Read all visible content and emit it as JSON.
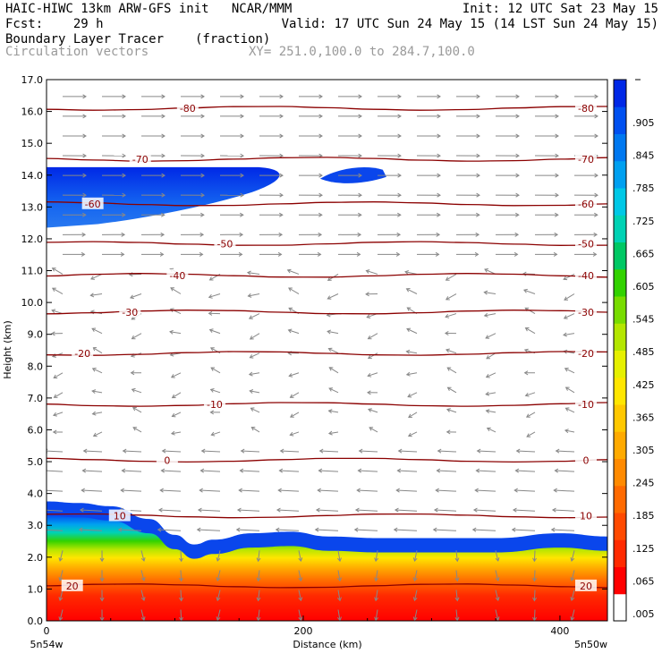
{
  "header": {
    "line1_left": "HAIC-HIWC 13km ARW-GFS init   NCAR/MMM",
    "line1_right": "Init: 12 UTC Sat 23 May 15",
    "line2_left": "Fcst:    29 h",
    "line2_right": "Valid: 17 UTC Sun 24 May 15 (14 LST Sun 24 May 15)",
    "line3_left": "Boundary Layer Tracer",
    "line3_units": "(fraction)",
    "line4_left": "Circulation vectors",
    "line4_xy": "XY= 251.0,100.0 to 284.7,100.0"
  },
  "colors": {
    "isotherm": "#8b0000",
    "vector": "#888888",
    "frame": "#000000",
    "colorbar": [
      "#ffffff",
      "#ff0000",
      "#ff2a00",
      "#ff4a00",
      "#ff6a00",
      "#ff8a00",
      "#ffaa00",
      "#ffc800",
      "#ffe600",
      "#e6f000",
      "#b4e600",
      "#78dc00",
      "#32d200",
      "#00c864",
      "#00d2b4",
      "#00c8e6",
      "#00a0f0",
      "#0078f0",
      "#0050f0",
      "#0028e6"
    ]
  },
  "chart_data": {
    "type": "contour",
    "xlabel": "Distance (km)",
    "ylabel": "Height (km)",
    "xlim": [
      0,
      437
    ],
    "ylim": [
      0,
      17
    ],
    "x_ticks": [
      0,
      200,
      400
    ],
    "y_ticks": [
      "0.0",
      "1.0",
      "2.0",
      "3.0",
      "4.0",
      "5.0",
      "6.0",
      "7.0",
      "8.0",
      "9.0",
      "10.0",
      "11.0",
      "12.0",
      "13.0",
      "14.0",
      "15.0",
      "16.0",
      "17.0"
    ],
    "x_endpoints": {
      "left": "5n54w",
      "right": "5n50w"
    },
    "colorbar": {
      "labels": [
        ".005",
        ".065",
        ".125",
        ".185",
        ".245",
        ".305",
        ".365",
        ".425",
        ".485",
        ".545",
        ".605",
        ".665",
        ".725",
        ".785",
        ".845",
        ".905"
      ]
    },
    "tracer_top": [
      {
        "x": 0,
        "y": 3.75
      },
      {
        "x": 25,
        "y": 3.7
      },
      {
        "x": 50,
        "y": 3.6
      },
      {
        "x": 80,
        "y": 3.2
      },
      {
        "x": 100,
        "y": 2.7
      },
      {
        "x": 115,
        "y": 2.4
      },
      {
        "x": 130,
        "y": 2.55
      },
      {
        "x": 160,
        "y": 2.75
      },
      {
        "x": 190,
        "y": 2.8
      },
      {
        "x": 220,
        "y": 2.65
      },
      {
        "x": 260,
        "y": 2.6
      },
      {
        "x": 300,
        "y": 2.6
      },
      {
        "x": 350,
        "y": 2.6
      },
      {
        "x": 400,
        "y": 2.75
      },
      {
        "x": 437,
        "y": 2.65
      }
    ],
    "upper_layer": {
      "x_end": 185,
      "y_bottom": 12.35,
      "y_top": 14.25
    },
    "isotherms": [
      {
        "label": "20",
        "y": 1.1
      },
      {
        "label": "10",
        "y": 3.3
      },
      {
        "label": "0",
        "y": 5.05
      },
      {
        "label": "-10",
        "y": 6.8
      },
      {
        "label": "-20",
        "y": 8.4
      },
      {
        "label": "-30",
        "y": 9.7
      },
      {
        "label": "-40",
        "y": 10.85
      },
      {
        "label": "-50",
        "y": 11.85
      },
      {
        "label": "-60",
        "y": 13.1
      },
      {
        "label": "-70",
        "y": 14.5
      },
      {
        "label": "-80",
        "y": 16.1
      }
    ]
  }
}
